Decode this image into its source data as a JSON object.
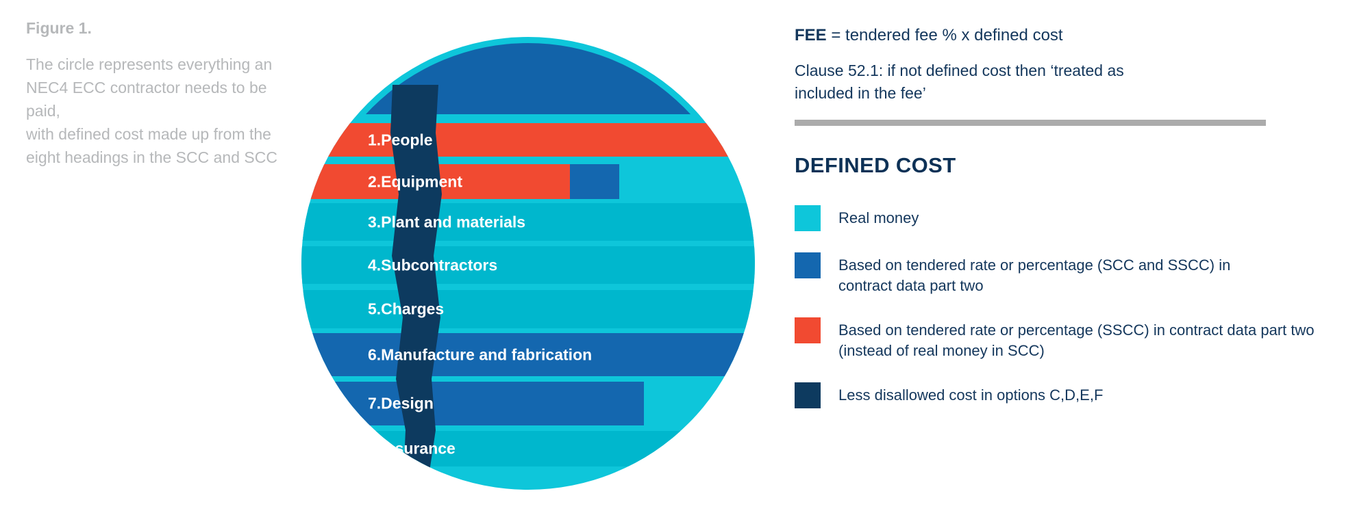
{
  "colors": {
    "circle_cyan": "#0EC6DA",
    "band_cyan": "#00B7CD",
    "band_blue": "#1467AF",
    "cap_blue": "#1263A9",
    "red": "#F14A31",
    "navy": "#0D3A5F",
    "divider_gray": "#ABABAB",
    "text_dark": "#14375C",
    "heading_navy": "#0D3156",
    "caption_gray": "#B6B8BA",
    "band_label_white": "#FFFFFF"
  },
  "figure": {
    "title": "Figure 1.",
    "caption": "The circle represents everything an\nNEC4 ECC contractor needs to be paid,\nwith defined cost made up from the\neight headings in the SCC and SCC"
  },
  "diagram": {
    "bands": [
      {
        "label": "1.People",
        "fill": "red"
      },
      {
        "label": "2.Equipment",
        "fill": "red",
        "extra_fill": "band_blue"
      },
      {
        "label": "3.Plant and materials",
        "fill": "band_cyan"
      },
      {
        "label": "4.Subcontractors",
        "fill": "band_cyan"
      },
      {
        "label": "5.Charges",
        "fill": "band_cyan"
      },
      {
        "label": "6.Manufacture and fabrication",
        "fill": "band_blue"
      },
      {
        "label": "7.Design",
        "fill": "band_blue"
      },
      {
        "label": "8.Insurance",
        "fill": "band_cyan"
      }
    ],
    "disallowed_strip": "Less disallowed cost"
  },
  "panel": {
    "fee_bold": "FEE",
    "fee_rest": " = tendered fee % x defined cost",
    "clause": "Clause 52.1: if not defined cost then ‘treated as\nincluded in the fee’",
    "heading": "DEFINED COST",
    "legend": [
      {
        "swatch": "circle_cyan",
        "label": "Real money"
      },
      {
        "swatch": "band_blue",
        "label": "Based on tendered rate or percentage (SCC and SSCC) in\ncontract data part two"
      },
      {
        "swatch": "red",
        "label": "Based on tendered rate or percentage (SSCC) in contract data part two\n(instead of real money in SCC)"
      },
      {
        "swatch": "navy",
        "label": "Less disallowed cost in options C,D,E,F"
      }
    ]
  }
}
